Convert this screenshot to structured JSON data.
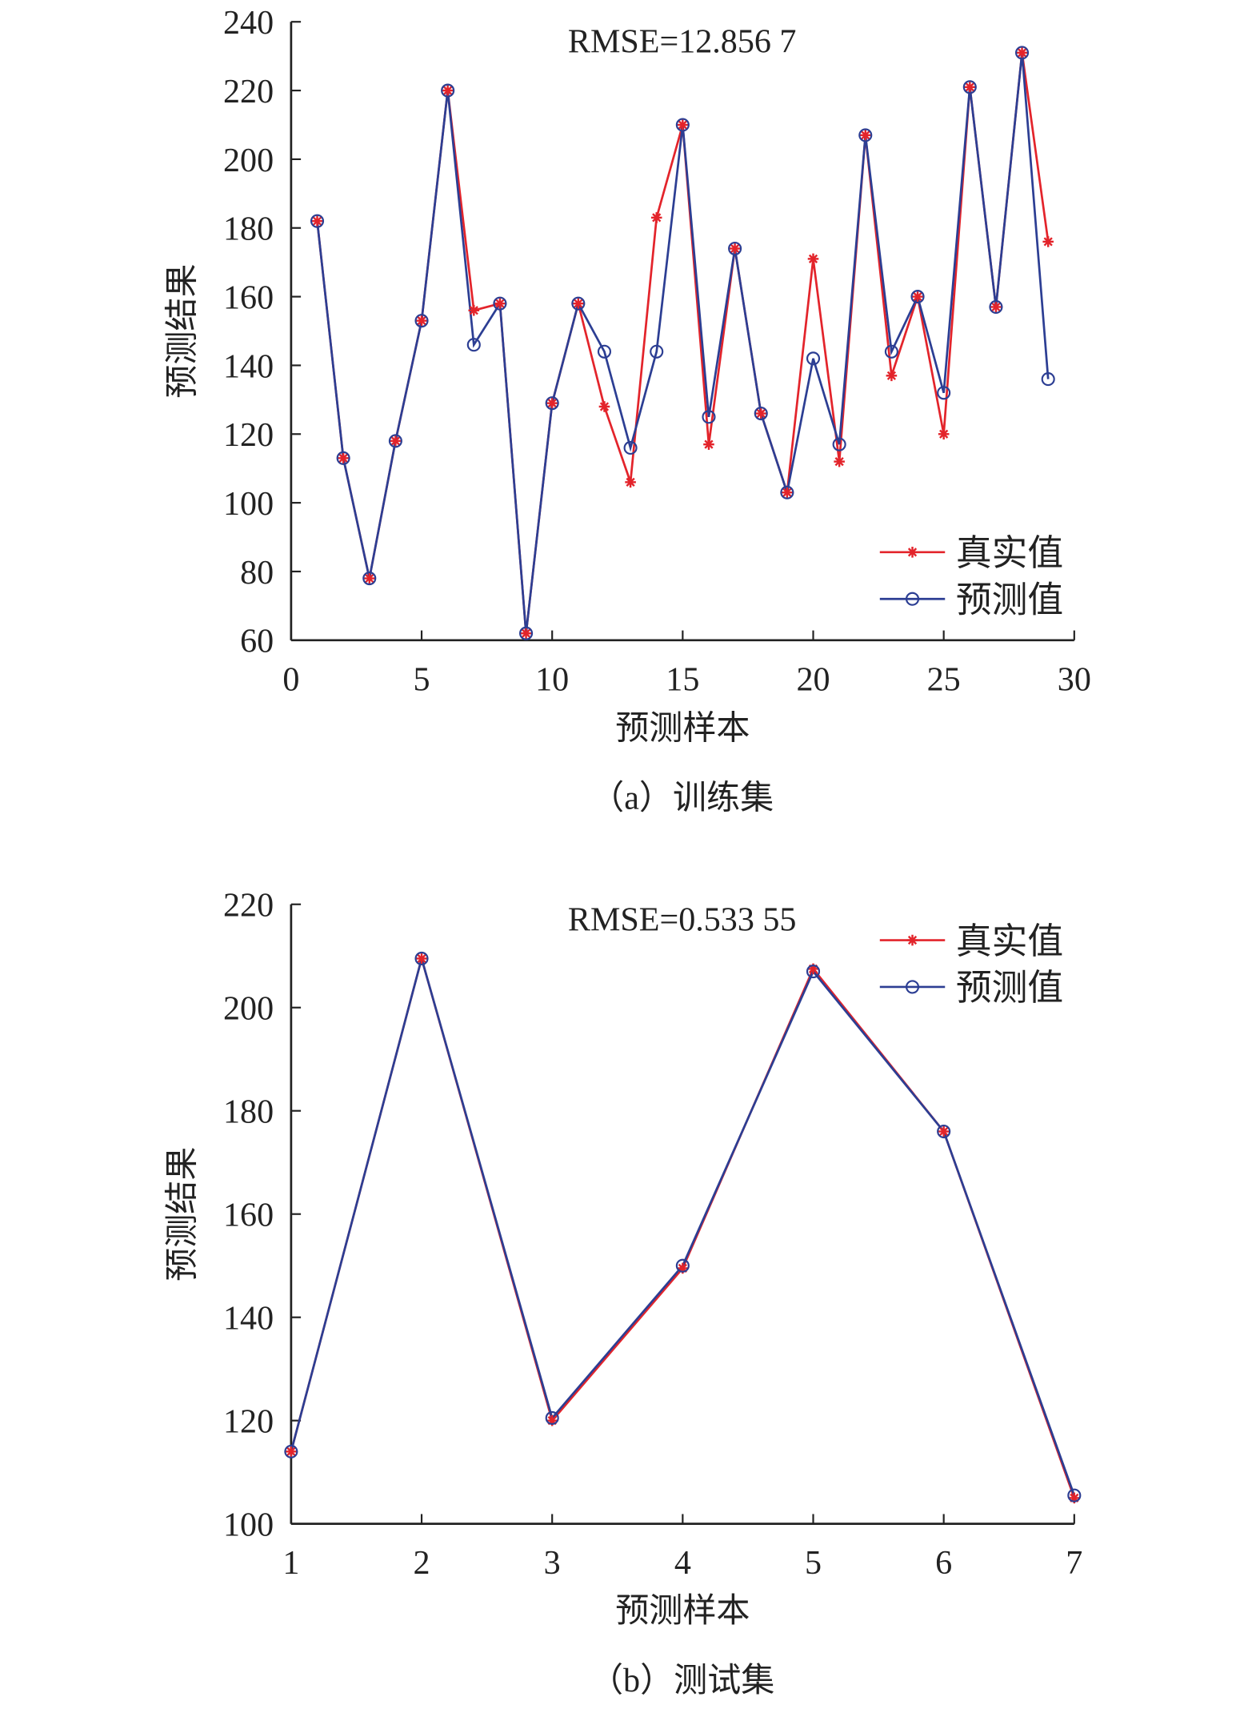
{
  "colors": {
    "true": "#e3242b",
    "pred": "#2c3e93",
    "axis": "#222222"
  },
  "chart_data": [
    {
      "type": "line",
      "annotation": "RMSE=12.856 7",
      "xlabel": "预测样本",
      "ylabel": "预测结果",
      "caption": "（a）训练集",
      "xlim": [
        0,
        30
      ],
      "ylim": [
        60,
        240
      ],
      "xticks": [
        0,
        5,
        10,
        15,
        20,
        25,
        30
      ],
      "yticks": [
        60,
        80,
        100,
        120,
        140,
        160,
        180,
        200,
        220,
        240
      ],
      "legend_position": "bottom-right",
      "x": [
        1,
        2,
        3,
        4,
        5,
        6,
        7,
        8,
        9,
        10,
        11,
        12,
        13,
        14,
        15,
        16,
        17,
        18,
        19,
        20,
        21,
        22,
        23,
        24,
        25,
        26,
        27,
        28,
        29
      ],
      "series": [
        {
          "name": "真实值",
          "marker": "asterisk",
          "values": [
            182,
            113,
            78,
            118,
            153,
            220,
            156,
            158,
            62,
            129,
            158,
            128,
            106,
            183,
            210,
            117,
            174,
            126,
            103,
            171,
            112,
            207,
            137,
            160,
            120,
            221,
            157,
            231,
            176
          ]
        },
        {
          "name": "预测值",
          "marker": "circle",
          "values": [
            182,
            113,
            78,
            118,
            153,
            220,
            146,
            158,
            62,
            129,
            158,
            144,
            116,
            144,
            210,
            125,
            174,
            126,
            103,
            142,
            117,
            207,
            144,
            160,
            132,
            221,
            157,
            231,
            136
          ]
        }
      ]
    },
    {
      "type": "line",
      "annotation": "RMSE=0.533 55",
      "xlabel": "预测样本",
      "ylabel": "预测结果",
      "caption": "（b）测试集",
      "xlim": [
        1,
        7
      ],
      "ylim": [
        100,
        220
      ],
      "xticks": [
        1,
        2,
        3,
        4,
        5,
        6,
        7
      ],
      "yticks": [
        100,
        120,
        140,
        160,
        180,
        200,
        220
      ],
      "legend_position": "top-right",
      "x": [
        1,
        2,
        3,
        4,
        5,
        6,
        7
      ],
      "series": [
        {
          "name": "真实值",
          "marker": "asterisk",
          "values": [
            114,
            209.5,
            120,
            149.5,
            207.5,
            176,
            105
          ]
        },
        {
          "name": "预测值",
          "marker": "circle",
          "values": [
            114,
            209.5,
            120.5,
            150,
            207,
            176,
            105.5
          ]
        }
      ]
    }
  ]
}
